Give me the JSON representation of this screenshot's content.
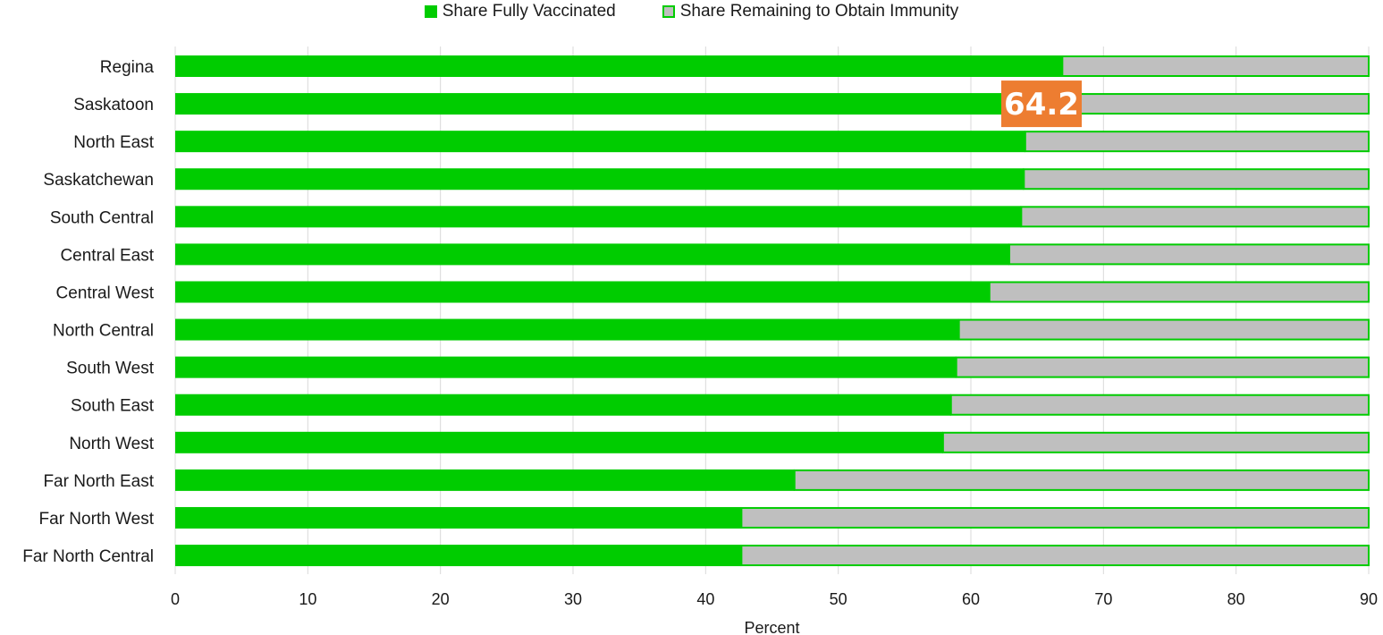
{
  "chart_data": {
    "type": "bar",
    "orientation": "horizontal",
    "stacked": true,
    "title": "",
    "xlabel": "Percent",
    "ylabel": "",
    "xlim": [
      0,
      90
    ],
    "xticks": [
      0,
      10,
      20,
      30,
      40,
      50,
      60,
      70,
      80,
      90
    ],
    "grid": true,
    "legend_position": "top-center",
    "categories": [
      "Regina",
      "Saskatoon",
      "North East",
      "Saskatchewan",
      "South Central",
      "Central East",
      "Central West",
      "North Central",
      "South West",
      "South East",
      "North West",
      "Far North East",
      "Far North West",
      "Far North Central"
    ],
    "series": [
      {
        "name": "Share Fully Vaccinated",
        "color": "#00cc00",
        "values": [
          66.9,
          64.2,
          64.1,
          64.0,
          63.8,
          62.9,
          61.4,
          59.1,
          58.9,
          58.5,
          57.9,
          46.7,
          42.7,
          42.7
        ]
      },
      {
        "name": "Share Remaining to Obtain Immunity",
        "color": "#bfbfbf",
        "border_color": "#00cc00",
        "values": [
          23.1,
          25.8,
          25.9,
          26.0,
          26.2,
          27.1,
          28.6,
          30.9,
          31.1,
          31.5,
          32.1,
          43.3,
          47.3,
          47.3
        ]
      }
    ],
    "annotations": [
      {
        "category": "Saskatoon",
        "text": "64.2",
        "background": "#ed7d31",
        "color": "#ffffff"
      }
    ]
  }
}
